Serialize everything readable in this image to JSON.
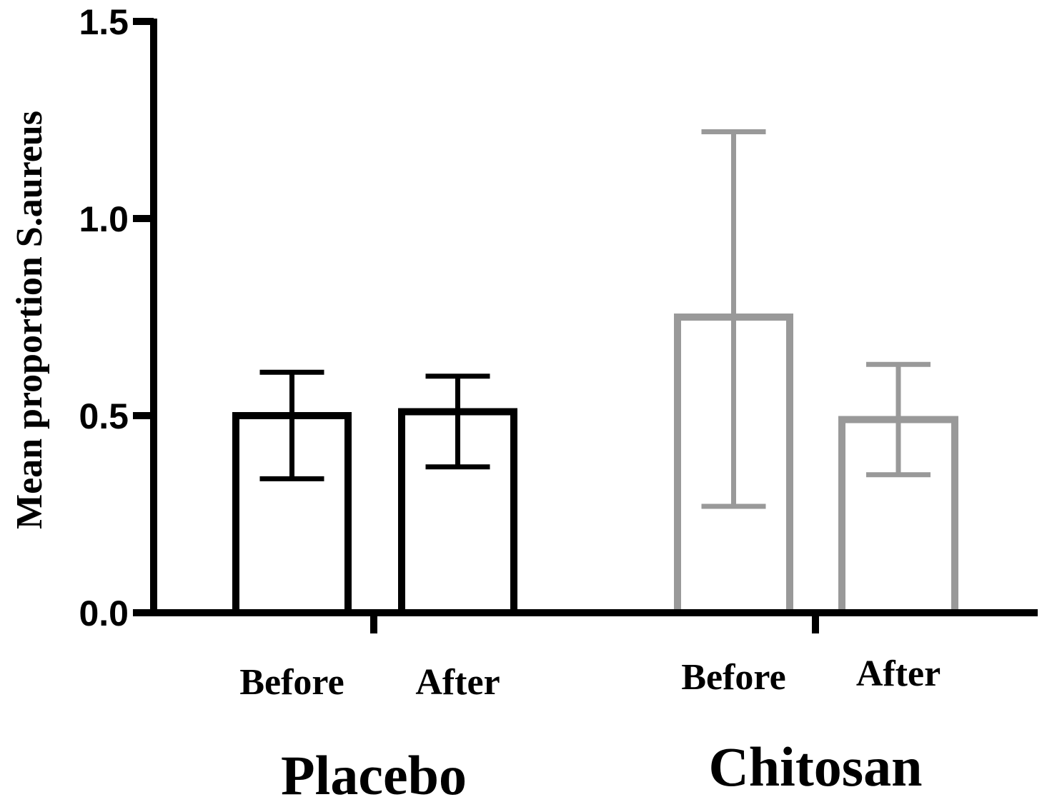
{
  "chart_data": {
    "type": "bar",
    "ylabel": "Mean proportion S.aureus",
    "ylim": [
      0,
      1.5
    ],
    "yticks": [
      "0.0",
      "0.5",
      "1.0",
      "1.5"
    ],
    "grid": false,
    "groups": [
      {
        "name": "Placebo",
        "color": "#000000",
        "bars": [
          {
            "category": "Before",
            "value": 0.5,
            "err_low": 0.34,
            "err_high": 0.61
          },
          {
            "category": "After",
            "value": 0.51,
            "err_low": 0.37,
            "err_high": 0.6
          }
        ]
      },
      {
        "name": "Chitosan",
        "color": "#999999",
        "bars": [
          {
            "category": "Before",
            "value": 0.75,
            "err_low": 0.27,
            "err_high": 1.22
          },
          {
            "category": "After",
            "value": 0.49,
            "err_low": 0.35,
            "err_high": 0.63
          }
        ]
      }
    ]
  }
}
